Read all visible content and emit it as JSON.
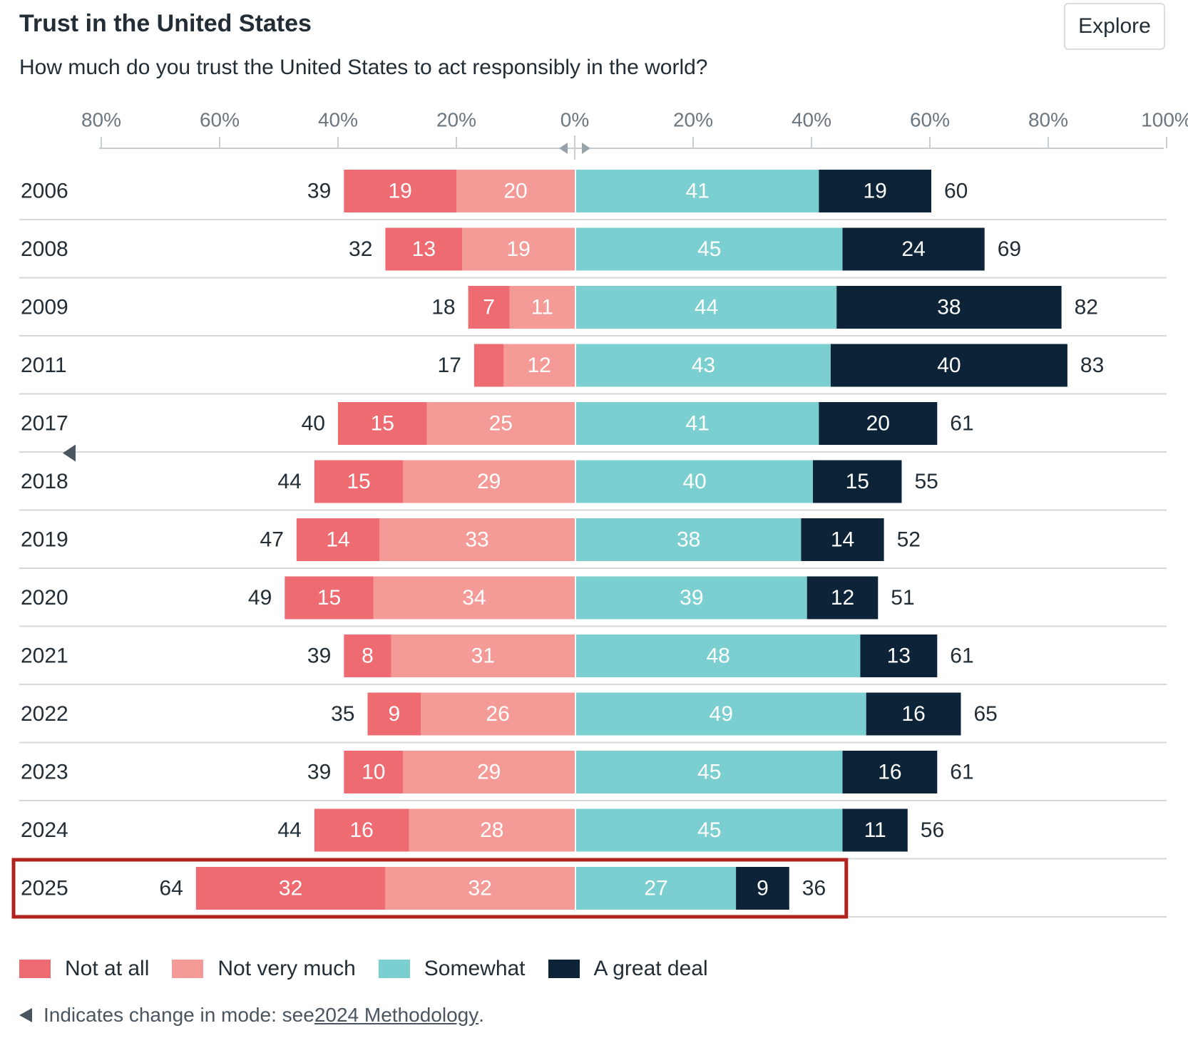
{
  "header": {
    "title": "Trust in the United States",
    "subtitle": "How much do you trust the United States to act responsibly in the world?",
    "explore_label": "Explore"
  },
  "chart_data": {
    "type": "bar",
    "orientation": "horizontal-diverging",
    "stacked": true,
    "left_axis_ticks": [
      "80%",
      "60%",
      "40%",
      "20%"
    ],
    "zero_tick": "0%",
    "right_axis_ticks": [
      "20%",
      "40%",
      "60%",
      "80%",
      "100%"
    ],
    "axis_range_left": [
      0,
      80
    ],
    "axis_range_right": [
      0,
      100
    ],
    "categories": [
      "2006",
      "2008",
      "2009",
      "2011",
      "2017",
      "2018",
      "2019",
      "2020",
      "2021",
      "2022",
      "2023",
      "2024",
      "2025"
    ],
    "series": [
      {
        "name": "Not at all",
        "side": "left",
        "color": "#ee6b72",
        "values": [
          19,
          13,
          7,
          5,
          15,
          15,
          14,
          15,
          8,
          9,
          10,
          16,
          32
        ],
        "labels": [
          "19",
          "13",
          "7",
          "",
          "15",
          "15",
          "14",
          "15",
          "8",
          "9",
          "10",
          "16",
          "32"
        ]
      },
      {
        "name": "Not very much",
        "side": "left",
        "color": "#f49a97",
        "values": [
          20,
          19,
          11,
          12,
          25,
          29,
          33,
          34,
          31,
          26,
          29,
          28,
          32
        ],
        "labels": [
          "20",
          "19",
          "11",
          "12",
          "25",
          "29",
          "33",
          "34",
          "31",
          "26",
          "29",
          "28",
          "32"
        ]
      },
      {
        "name": "Somewhat",
        "side": "right",
        "color": "#7ccfd0",
        "values": [
          41,
          45,
          44,
          43,
          41,
          40,
          38,
          39,
          48,
          49,
          45,
          45,
          27
        ],
        "labels": [
          "41",
          "45",
          "44",
          "43",
          "41",
          "40",
          "38",
          "39",
          "48",
          "49",
          "45",
          "45",
          "27"
        ]
      },
      {
        "name": "A great deal",
        "side": "right",
        "color": "#0d2438",
        "values": [
          19,
          24,
          38,
          40,
          20,
          15,
          14,
          12,
          13,
          16,
          16,
          11,
          9
        ],
        "labels": [
          "19",
          "24",
          "38",
          "40",
          "20",
          "15",
          "14",
          "12",
          "13",
          "16",
          "16",
          "11",
          "9"
        ]
      }
    ],
    "left_totals": [
      "39",
      "32",
      "18",
      "17",
      "40",
      "44",
      "47",
      "49",
      "39",
      "35",
      "39",
      "44",
      "64"
    ],
    "right_totals": [
      "60",
      "69",
      "82",
      "83",
      "61",
      "55",
      "52",
      "51",
      "61",
      "65",
      "61",
      "56",
      "36"
    ],
    "highlighted_category": "2025",
    "highlight_color": "#b2231f",
    "mode_change_before": "2018"
  },
  "legend": [
    {
      "label": "Not at all",
      "color": "#ee6b72"
    },
    {
      "label": "Not very much",
      "color": "#f49a97"
    },
    {
      "label": "Somewhat",
      "color": "#7ccfd0"
    },
    {
      "label": "A great deal",
      "color": "#0d2438"
    }
  ],
  "footnote": {
    "text": "Indicates change in mode: see ",
    "link": "2024 Methodology",
    "end": "."
  }
}
